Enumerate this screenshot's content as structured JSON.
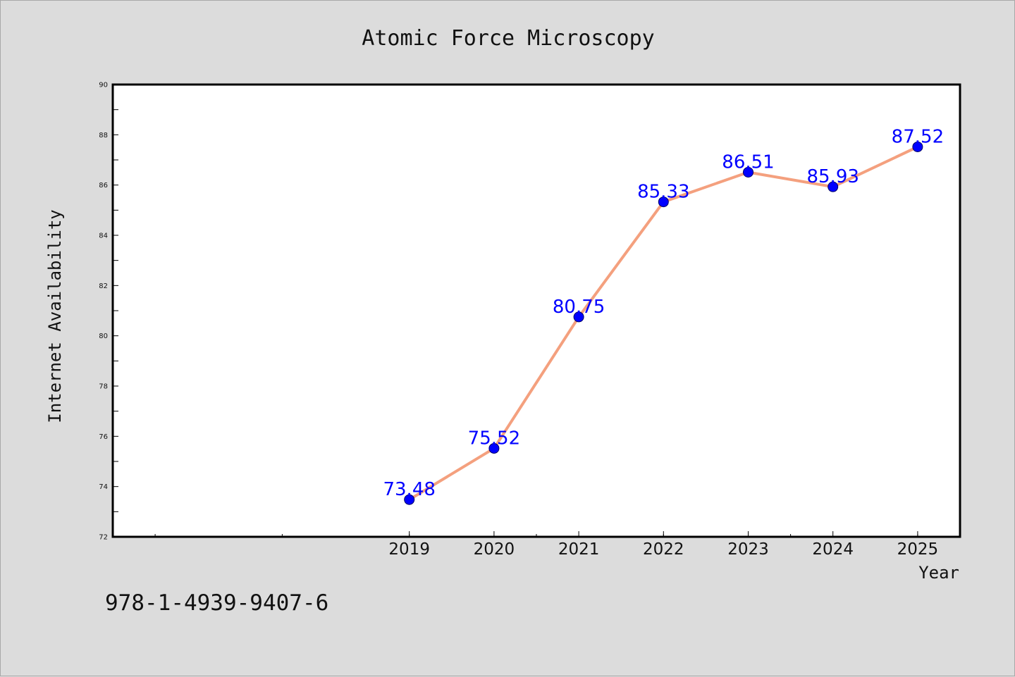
{
  "chart_data": {
    "type": "line",
    "title": "Atomic Force Microscopy",
    "xlabel": "Year",
    "ylabel": "Internet Availability",
    "x": [
      2019,
      2020,
      2021,
      2022,
      2023,
      2024,
      2025
    ],
    "x_tick_labels": [
      "2019",
      "2020",
      "2021",
      "2022",
      "2023",
      "2024",
      "2025"
    ],
    "xlim": [
      2015.5,
      2025.5
    ],
    "ylim": [
      72,
      90
    ],
    "yticks": [
      72,
      74,
      76,
      78,
      80,
      82,
      84,
      86,
      88,
      90
    ],
    "series": [
      {
        "values": [
          73.48,
          75.52,
          80.75,
          85.33,
          86.51,
          85.93,
          87.52
        ],
        "data_labels": [
          "73.48",
          "75.52",
          "80.75",
          "85.33",
          "86.51",
          "85.93",
          "87.52"
        ],
        "line_color": "#f4a07e",
        "marker_color": "#0000ff"
      }
    ],
    "label_color": "#0000ff",
    "grid": false,
    "legend": "none"
  },
  "annotation": "978-1-4939-9407-6"
}
